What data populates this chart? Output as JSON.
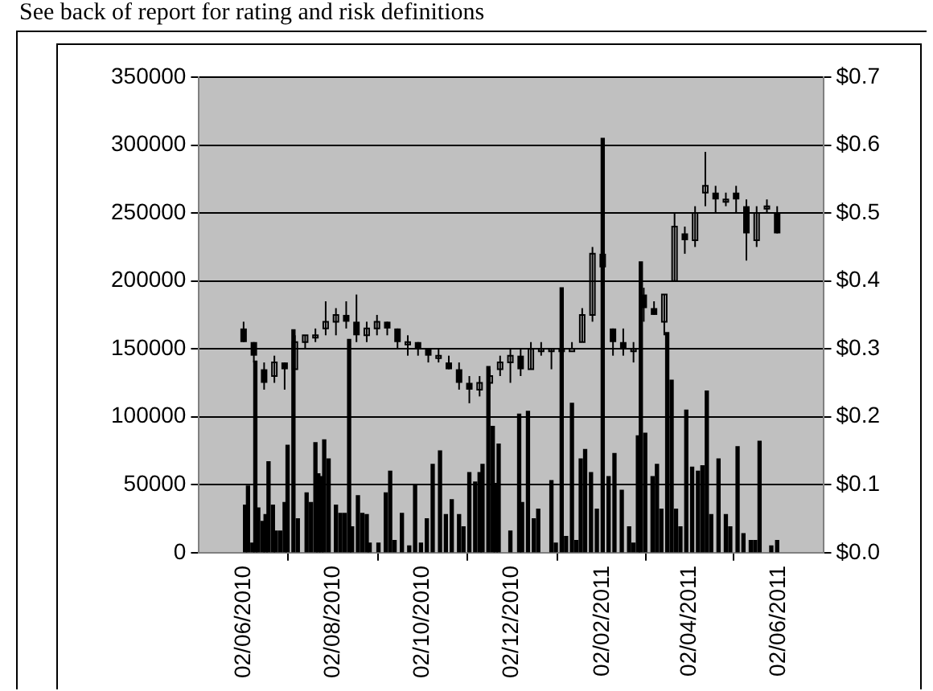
{
  "chart_data": {
    "type": "bar",
    "annotations": [
      "See back of report for rating and risk definitions"
    ],
    "series": [
      {
        "color": "#000000",
        "x": [
          "2010-06-03",
          "2010-06-05",
          "2010-06-08",
          "2010-06-10",
          "2010-06-12",
          "2010-06-15",
          "2010-06-17",
          "2010-06-19",
          "2010-06-22",
          "2010-06-24",
          "2010-06-27",
          "2010-06-30",
          "2010-07-02",
          "2010-07-06",
          "2010-07-09",
          "2010-07-15",
          "2010-07-18",
          "2010-07-21",
          "2010-07-23",
          "2010-07-25",
          "2010-07-27",
          "2010-07-30",
          "2010-08-04",
          "2010-08-07",
          "2010-08-10",
          "2010-08-13",
          "2010-08-15",
          "2010-08-19",
          "2010-08-22",
          "2010-08-25",
          "2010-08-27",
          "2010-09-02",
          "2010-09-07",
          "2010-09-10",
          "2010-09-13",
          "2010-09-18",
          "2010-09-23",
          "2010-09-27",
          "2010-10-01",
          "2010-10-05",
          "2010-10-09",
          "2010-10-14",
          "2010-10-18",
          "2010-10-22",
          "2010-10-27",
          "2010-10-30",
          "2010-11-03",
          "2010-11-07",
          "2010-11-10",
          "2010-11-12",
          "2010-11-16",
          "2010-11-19",
          "2010-11-21",
          "2010-11-23",
          "2010-12-01",
          "2010-12-07",
          "2010-12-09",
          "2010-12-13",
          "2010-12-17",
          "2010-12-20",
          "2010-12-29",
          "2011-01-01",
          "2011-01-05",
          "2011-01-08",
          "2011-01-12",
          "2011-01-15",
          "2011-01-18",
          "2011-01-21",
          "2011-01-25",
          "2011-01-29",
          "2011-02-02",
          "2011-02-06",
          "2011-02-10",
          "2011-02-15",
          "2011-02-20",
          "2011-02-23",
          "2011-02-26",
          "2011-02-28",
          "2011-03-03",
          "2011-03-08",
          "2011-03-11",
          "2011-03-14",
          "2011-03-18",
          "2011-03-21",
          "2011-03-24",
          "2011-03-27",
          "2011-03-31",
          "2011-04-04",
          "2011-04-08",
          "2011-04-11",
          "2011-04-14",
          "2011-04-17",
          "2011-04-22",
          "2011-04-27",
          "2011-04-30",
          "2011-05-05",
          "2011-05-09",
          "2011-05-14",
          "2011-05-17",
          "2011-05-20",
          "2011-05-28",
          "2011-06-01"
        ],
        "values": [
          35000,
          49000,
          7000,
          141000,
          33000,
          23000,
          28000,
          67000,
          35000,
          16000,
          16000,
          37000,
          79000,
          164000,
          25000,
          44000,
          37000,
          81000,
          58000,
          56000,
          83000,
          69000,
          35000,
          29000,
          29000,
          157000,
          19000,
          42000,
          29000,
          28000,
          7000,
          7000,
          44000,
          60000,
          9000,
          29000,
          5000,
          50000,
          7000,
          25000,
          65000,
          75000,
          28000,
          39000,
          28000,
          19000,
          59000,
          52000,
          59000,
          65000,
          137000,
          93000,
          51000,
          80000,
          16000,
          102000,
          37000,
          104000,
          25000,
          32000,
          53000,
          7000,
          195000,
          12000,
          110000,
          9000,
          69000,
          76000,
          59000,
          32000,
          305000,
          56000,
          73000,
          46000,
          19000,
          7000,
          86000,
          214000,
          88000,
          56000,
          65000,
          32000,
          162000,
          127000,
          32000,
          19000,
          105000,
          63000,
          60000,
          64000,
          119000,
          28000,
          69000,
          28000,
          19000,
          78000,
          14000,
          9000,
          9000,
          82000,
          5000,
          9000
        ]
      },
      {
        "type": "candlestick",
        "axis": "y2",
        "color": "#000000",
        "x": [
          "2010-06-02",
          "2010-06-09",
          "2010-06-16",
          "2010-06-23",
          "2010-06-30",
          "2010-07-07",
          "2010-07-14",
          "2010-07-21",
          "2010-07-28",
          "2010-08-04",
          "2010-08-11",
          "2010-08-18",
          "2010-08-25",
          "2010-09-01",
          "2010-09-08",
          "2010-09-15",
          "2010-09-22",
          "2010-09-29",
          "2010-10-06",
          "2010-10-13",
          "2010-10-20",
          "2010-10-27",
          "2010-11-03",
          "2010-11-10",
          "2010-11-17",
          "2010-11-24",
          "2010-12-01",
          "2010-12-08",
          "2010-12-15",
          "2010-12-22",
          "2010-12-29",
          "2011-01-05",
          "2011-01-12",
          "2011-01-19",
          "2011-01-26",
          "2011-02-02",
          "2011-02-09",
          "2011-02-16",
          "2011-02-23",
          "2011-03-02",
          "2011-03-09",
          "2011-03-16",
          "2011-03-23",
          "2011-03-30",
          "2011-04-06",
          "2011-04-13",
          "2011-04-20",
          "2011-04-27",
          "2011-05-04",
          "2011-05-11",
          "2011-05-18",
          "2011-05-25",
          "2011-06-01"
        ],
        "ohlc": [
          [
            0.33,
            0.34,
            0.31,
            0.31
          ],
          [
            0.31,
            0.31,
            0.28,
            0.29
          ],
          [
            0.27,
            0.28,
            0.24,
            0.25
          ],
          [
            0.26,
            0.29,
            0.25,
            0.28
          ],
          [
            0.28,
            0.28,
            0.24,
            0.27
          ],
          [
            0.27,
            0.32,
            0.27,
            0.31
          ],
          [
            0.31,
            0.32,
            0.3,
            0.32
          ],
          [
            0.32,
            0.33,
            0.31,
            0.32
          ],
          [
            0.33,
            0.37,
            0.32,
            0.34
          ],
          [
            0.34,
            0.36,
            0.32,
            0.35
          ],
          [
            0.35,
            0.37,
            0.33,
            0.34
          ],
          [
            0.34,
            0.38,
            0.31,
            0.32
          ],
          [
            0.32,
            0.34,
            0.31,
            0.33
          ],
          [
            0.33,
            0.35,
            0.32,
            0.34
          ],
          [
            0.34,
            0.34,
            0.32,
            0.33
          ],
          [
            0.33,
            0.33,
            0.3,
            0.31
          ],
          [
            0.31,
            0.32,
            0.29,
            0.31
          ],
          [
            0.31,
            0.31,
            0.29,
            0.3
          ],
          [
            0.3,
            0.3,
            0.28,
            0.29
          ],
          [
            0.29,
            0.3,
            0.28,
            0.29
          ],
          [
            0.28,
            0.29,
            0.27,
            0.27
          ],
          [
            0.27,
            0.28,
            0.24,
            0.25
          ],
          [
            0.25,
            0.26,
            0.22,
            0.24
          ],
          [
            0.24,
            0.26,
            0.23,
            0.25
          ],
          [
            0.25,
            0.27,
            0.24,
            0.26
          ],
          [
            0.27,
            0.29,
            0.26,
            0.28
          ],
          [
            0.28,
            0.3,
            0.25,
            0.29
          ],
          [
            0.29,
            0.3,
            0.26,
            0.27
          ],
          [
            0.27,
            0.31,
            0.27,
            0.3
          ],
          [
            0.3,
            0.31,
            0.29,
            0.3
          ],
          [
            0.3,
            0.3,
            0.27,
            0.3
          ],
          [
            0.3,
            0.31,
            0.3,
            0.3
          ],
          [
            0.3,
            0.31,
            0.3,
            0.3
          ],
          [
            0.31,
            0.36,
            0.31,
            0.35
          ],
          [
            0.35,
            0.45,
            0.34,
            0.44
          ],
          [
            0.44,
            0.45,
            0.4,
            0.42
          ],
          [
            0.33,
            0.33,
            0.29,
            0.31
          ],
          [
            0.31,
            0.33,
            0.29,
            0.3
          ],
          [
            0.3,
            0.31,
            0.28,
            0.3
          ],
          [
            0.38,
            0.39,
            0.34,
            0.36
          ],
          [
            0.36,
            0.37,
            0.35,
            0.35
          ],
          [
            0.34,
            0.38,
            0.32,
            0.38
          ],
          [
            0.4,
            0.5,
            0.4,
            0.48
          ],
          [
            0.47,
            0.48,
            0.44,
            0.46
          ],
          [
            0.46,
            0.51,
            0.45,
            0.5
          ],
          [
            0.53,
            0.59,
            0.51,
            0.54
          ],
          [
            0.53,
            0.54,
            0.5,
            0.52
          ],
          [
            0.52,
            0.53,
            0.51,
            0.52
          ],
          [
            0.53,
            0.54,
            0.5,
            0.52
          ],
          [
            0.51,
            0.52,
            0.43,
            0.47
          ],
          [
            0.46,
            0.51,
            0.45,
            0.5
          ],
          [
            0.51,
            0.52,
            0.5,
            0.51
          ],
          [
            0.5,
            0.51,
            0.47,
            0.47
          ]
        ]
      }
    ],
    "xlim": [
      "2010-06-02",
      "2011-06-02"
    ],
    "xticks": [
      {
        "value": "2010-06-02",
        "label": "02/06/2010"
      },
      {
        "value": "2010-08-02",
        "label": "02/08/2010"
      },
      {
        "value": "2010-10-02",
        "label": "02/10/2010"
      },
      {
        "value": "2010-12-02",
        "label": "02/12/2010"
      },
      {
        "value": "2011-02-02",
        "label": "02/02/2011"
      },
      {
        "value": "2011-04-02",
        "label": "02/04/2011"
      },
      {
        "value": "2011-06-02",
        "label": "02/06/2011"
      }
    ],
    "ylim": [
      0,
      350000
    ],
    "yticks": [
      0,
      50000,
      100000,
      150000,
      200000,
      250000,
      300000,
      350000
    ],
    "y2lim": [
      0,
      0.7
    ],
    "y2ticks": [
      {
        "value": 0,
        "label": "$0.0"
      },
      {
        "value": 0.1,
        "label": "$0.1"
      },
      {
        "value": 0.2,
        "label": "$0.2"
      },
      {
        "value": 0.3,
        "label": "$0.3"
      },
      {
        "value": 0.4,
        "label": "$0.4"
      },
      {
        "value": 0.5,
        "label": "$0.5"
      },
      {
        "value": 0.6,
        "label": "$0.6"
      },
      {
        "value": 0.7,
        "label": "$0.7"
      }
    ],
    "grid": "y",
    "legend": false
  }
}
